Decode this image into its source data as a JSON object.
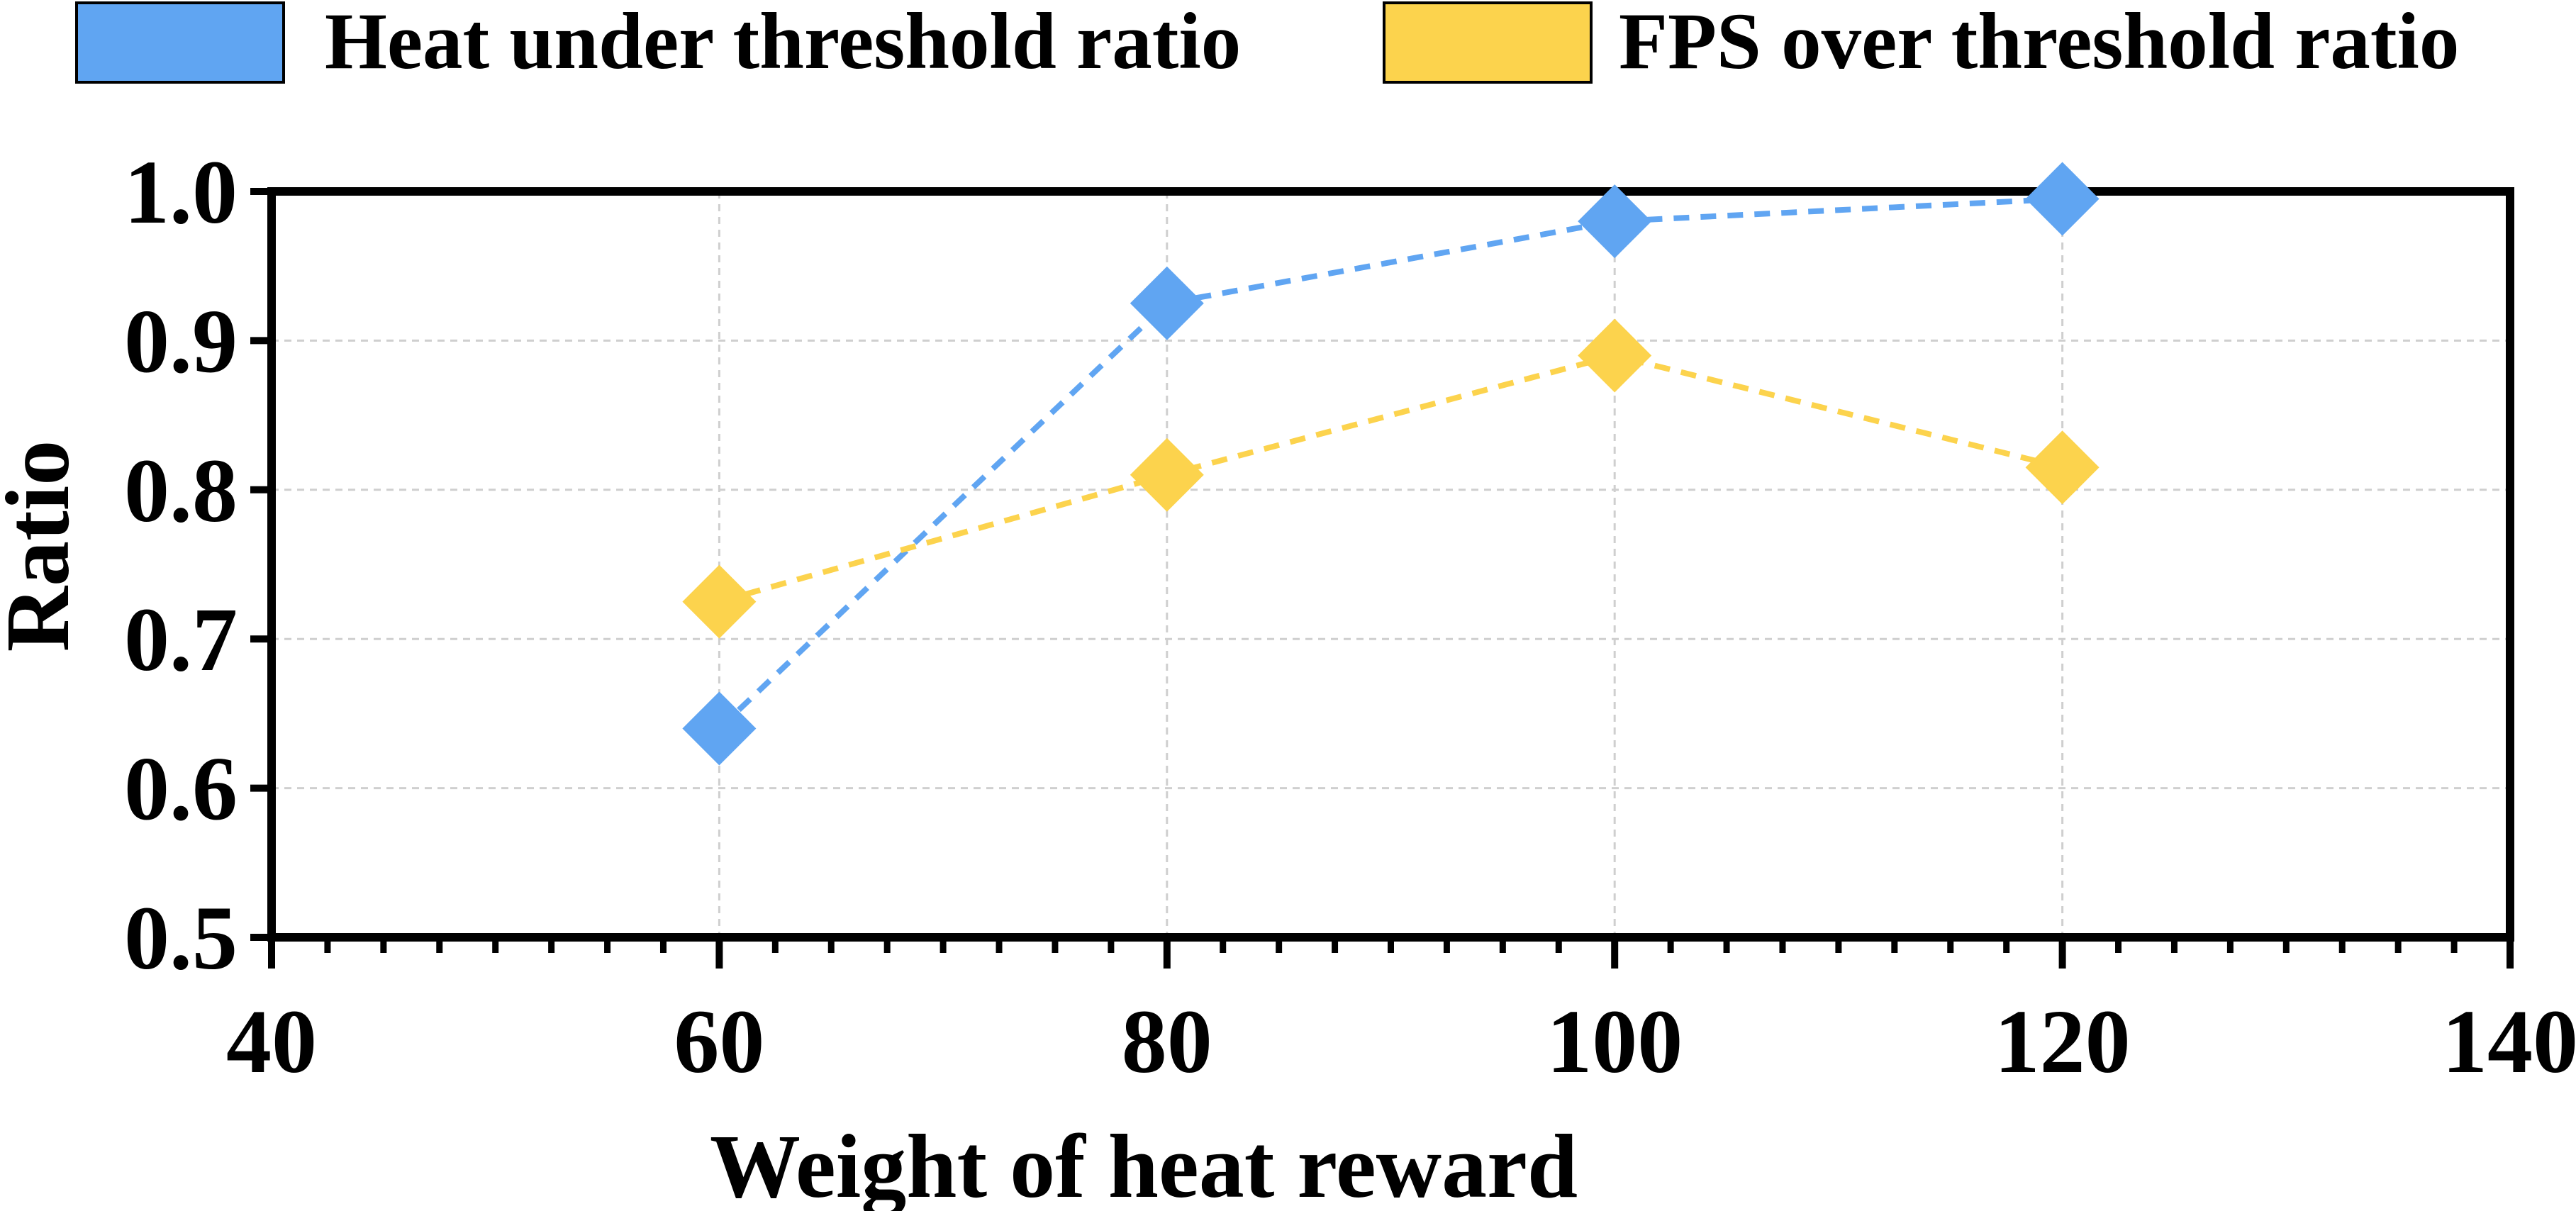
{
  "chart_data": {
    "type": "line",
    "title": "",
    "xlabel": "Weight of heat reward",
    "ylabel": "Ratio",
    "xlim": [
      40,
      140
    ],
    "ylim": [
      0.5,
      1.0
    ],
    "x_ticks": [
      "40",
      "60",
      "80",
      "100",
      "120",
      "140"
    ],
    "y_ticks": [
      "0.5",
      "0.6",
      "0.7",
      "0.8",
      "0.9",
      "1.0"
    ],
    "grid": true,
    "legend_position": "top",
    "marker": "diamond",
    "line_style": "dashed",
    "series": [
      {
        "name": "Heat under threshold ratio",
        "color": "#60A5F2",
        "x": [
          60,
          80,
          100,
          120
        ],
        "y": [
          0.64,
          0.925,
          0.98,
          0.995
        ]
      },
      {
        "name": "FPS over threshold ratio",
        "color": "#FCD34D",
        "x": [
          60,
          80,
          100,
          120
        ],
        "y": [
          0.725,
          0.81,
          0.89,
          0.815
        ]
      }
    ]
  }
}
